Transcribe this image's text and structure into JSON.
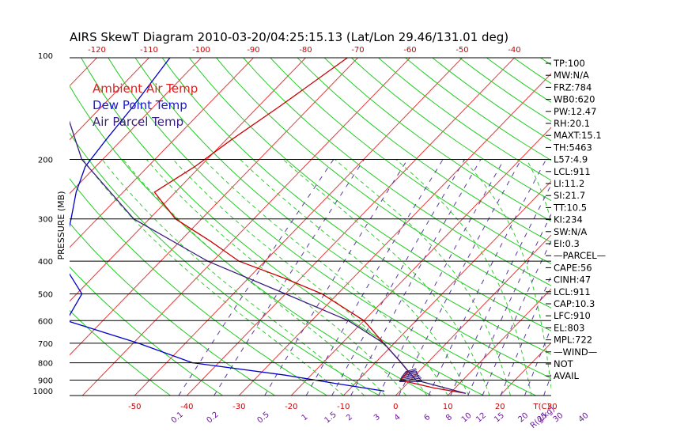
{
  "chart_data": {
    "type": "skewt",
    "title": "AIRS SkewT Diagram 2010-03-20/04:25:15.13 (Lat/Lon 29.46/131.01 deg)",
    "ylabel": "PRESSURE (MB)",
    "xlabel_top_temps": [
      "-120",
      "-110",
      "-100",
      "-90",
      "-80",
      "-70",
      "-60",
      "-50",
      "-40"
    ],
    "xlabel_bottom_temps": [
      "-50",
      "-40",
      "-30",
      "-20",
      "-10",
      "0",
      "10",
      "20",
      "30",
      "T(C)"
    ],
    "pressure_ticks": [
      "100",
      "200",
      "300",
      "400",
      "500",
      "600",
      "700",
      "800",
      "900",
      "1000"
    ],
    "pressure_levels_drawn": [
      100,
      200,
      300,
      400,
      500,
      600,
      700,
      800,
      900,
      1000
    ],
    "mixing_ratio_labels": [
      "0.1",
      "0.2",
      "0.5",
      "1",
      "1.5",
      "2",
      "3",
      "4",
      "6",
      "8",
      "10",
      "12",
      "15",
      "20",
      "25",
      "30",
      "40",
      "R(g/kg)"
    ],
    "mixing_ratio_values": [
      0.1,
      0.2,
      0.5,
      1,
      1.5,
      2,
      3,
      4,
      6,
      8,
      10,
      12,
      15,
      20,
      25,
      30,
      40
    ],
    "legend": [
      {
        "label": "Ambient Air Temp",
        "color": "#dd2222"
      },
      {
        "label": "Dew Point Temp",
        "color": "#1a1ad0"
      },
      {
        "label": "Air Parcel Temp",
        "color": "#3a2080"
      }
    ],
    "series": [
      {
        "name": "Ambient Air Temp",
        "color": "#cc0000",
        "points": [
          {
            "p": 100,
            "t": -72
          },
          {
            "p": 140,
            "t": -76
          },
          {
            "p": 175,
            "t": -79
          },
          {
            "p": 210,
            "t": -81
          },
          {
            "p": 250,
            "t": -84
          },
          {
            "p": 300,
            "t": -75
          },
          {
            "p": 350,
            "t": -64
          },
          {
            "p": 400,
            "t": -55
          },
          {
            "p": 450,
            "t": -43
          },
          {
            "p": 500,
            "t": -33
          },
          {
            "p": 600,
            "t": -20
          },
          {
            "p": 700,
            "t": -12
          },
          {
            "p": 800,
            "t": -5
          },
          {
            "p": 850,
            "t": -2
          },
          {
            "p": 900,
            "t": -2
          },
          {
            "p": 950,
            "t": 6
          },
          {
            "p": 985,
            "t": 13
          }
        ]
      },
      {
        "name": "Dew Point Temp",
        "color": "#0000cc",
        "points": [
          {
            "p": 100,
            "t": -106
          },
          {
            "p": 140,
            "t": -104
          },
          {
            "p": 175,
            "t": -103
          },
          {
            "p": 210,
            "t": -102
          },
          {
            "p": 250,
            "t": -99
          },
          {
            "p": 300,
            "t": -95
          },
          {
            "p": 400,
            "t": -89
          },
          {
            "p": 500,
            "t": -79
          },
          {
            "p": 600,
            "t": -77
          },
          {
            "p": 700,
            "t": -59
          },
          {
            "p": 800,
            "t": -45
          },
          {
            "p": 870,
            "t": -25
          },
          {
            "p": 920,
            "t": -14
          },
          {
            "p": 970,
            "t": -3
          }
        ]
      },
      {
        "name": "Air Parcel Temp",
        "color": "#3a2080",
        "points": [
          {
            "p": 100,
            "t": -128
          },
          {
            "p": 140,
            "t": -117
          },
          {
            "p": 200,
            "t": -104
          },
          {
            "p": 300,
            "t": -83
          },
          {
            "p": 400,
            "t": -61
          },
          {
            "p": 500,
            "t": -40
          },
          {
            "p": 600,
            "t": -23
          },
          {
            "p": 700,
            "t": -12
          },
          {
            "p": 800,
            "t": -5
          },
          {
            "p": 900,
            "t": 1
          },
          {
            "p": 985,
            "t": 13
          }
        ]
      }
    ],
    "cape_region": [
      {
        "p": 850,
        "tEnv": -2.5,
        "tPar": -0.5
      },
      {
        "p": 880,
        "tEnv": -2.3,
        "tPar": 0.8
      },
      {
        "p": 910,
        "tEnv": -1.8,
        "tPar": 2.5
      }
    ],
    "indices": [
      "TP:100",
      "MW:N/A",
      "FRZ:784",
      "WB0:620",
      "PW:12.47",
      "RH:20.1",
      "MAXT:15.1",
      "TH:5463",
      "L57:4.9",
      "LCL:911",
      "LI:11.2",
      "SI:21.7",
      "TT:10.5",
      "KI:234",
      "SW:N/A",
      "EI:0.3",
      "—PARCEL—",
      "CAPE:56",
      "CINH:47",
      "LCL:911",
      "CAP:10.3",
      "LFC:910",
      "EL:803",
      "MPL:722",
      "—WIND—",
      "NOT",
      "AVAIL"
    ]
  }
}
